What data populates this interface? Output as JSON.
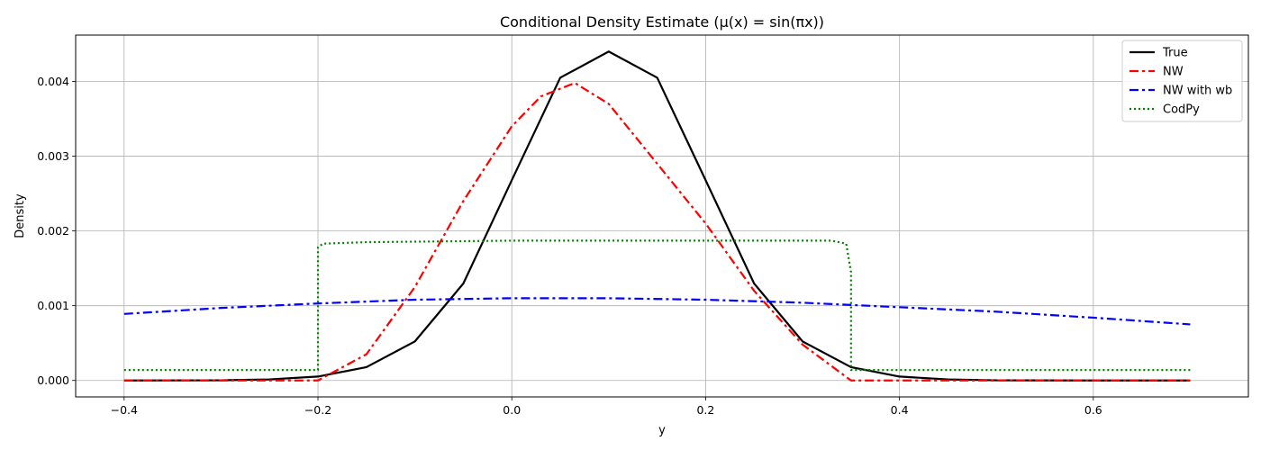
{
  "chart_data": {
    "type": "line",
    "title": "Conditional Density Estimate (μ(x) = sin(πx))",
    "xlabel": "y",
    "ylabel": "Density",
    "xlim": [
      -0.45,
      0.76
    ],
    "ylim": [
      -0.00022,
      0.00462
    ],
    "xticks": [
      -0.4,
      -0.2,
      0.0,
      0.2,
      0.4,
      0.6
    ],
    "xtick_labels": [
      "−0.4",
      "−0.2",
      "0.0",
      "0.2",
      "0.4",
      "0.6"
    ],
    "yticks": [
      0.0,
      0.001,
      0.002,
      0.003,
      0.004
    ],
    "ytick_labels": [
      "0.000",
      "0.001",
      "0.002",
      "0.003",
      "0.004"
    ],
    "grid": true,
    "legend_position": "top-right",
    "series": [
      {
        "name": "True",
        "color": "#000000",
        "style": "solid",
        "x": [
          -0.4,
          -0.3,
          -0.25,
          -0.2,
          -0.15,
          -0.1,
          -0.05,
          0.0,
          0.05,
          0.1,
          0.15,
          0.2,
          0.25,
          0.3,
          0.35,
          0.4,
          0.45,
          0.5,
          0.6,
          0.7
        ],
        "y": [
          0.0,
          2e-06,
          1.4e-05,
          5.2e-05,
          0.000178,
          0.000522,
          0.001297,
          0.002679,
          0.00405,
          0.0044,
          0.00405,
          0.002679,
          0.001297,
          0.000522,
          0.000178,
          5.2e-05,
          1.4e-05,
          2e-06,
          0.0,
          0.0
        ]
      },
      {
        "name": "NW",
        "color": "#ff0000",
        "style": "dashdot",
        "x": [
          -0.4,
          -0.2,
          -0.15,
          -0.1,
          -0.05,
          0.0,
          0.03,
          0.065,
          0.1,
          0.15,
          0.2,
          0.25,
          0.3,
          0.35,
          0.4,
          0.7
        ],
        "y": [
          0.0,
          0.0,
          0.00035,
          0.00125,
          0.0024,
          0.0034,
          0.0038,
          0.00398,
          0.0037,
          0.0029,
          0.0021,
          0.0012,
          0.00048,
          0.0,
          0.0,
          0.0
        ]
      },
      {
        "name": "NW with wb",
        "color": "#0000ff",
        "style": "dashdot",
        "x": [
          -0.4,
          -0.3,
          -0.2,
          -0.1,
          0.0,
          0.1,
          0.2,
          0.3,
          0.4,
          0.5,
          0.6,
          0.7
        ],
        "y": [
          0.00089,
          0.00097,
          0.00103,
          0.00108,
          0.0011,
          0.0011,
          0.00108,
          0.00104,
          0.00098,
          0.00092,
          0.00084,
          0.00075
        ]
      },
      {
        "name": "CodPy",
        "color": "#008000",
        "style": "dotted",
        "x": [
          -0.4,
          -0.2,
          -0.2,
          -0.195,
          -0.15,
          0.0,
          0.2,
          0.33,
          0.345,
          0.35,
          0.35,
          0.7
        ],
        "y": [
          0.00014,
          0.00014,
          0.00178,
          0.00183,
          0.00185,
          0.00187,
          0.00187,
          0.00187,
          0.00183,
          0.00145,
          0.00014,
          0.00014
        ]
      }
    ]
  }
}
